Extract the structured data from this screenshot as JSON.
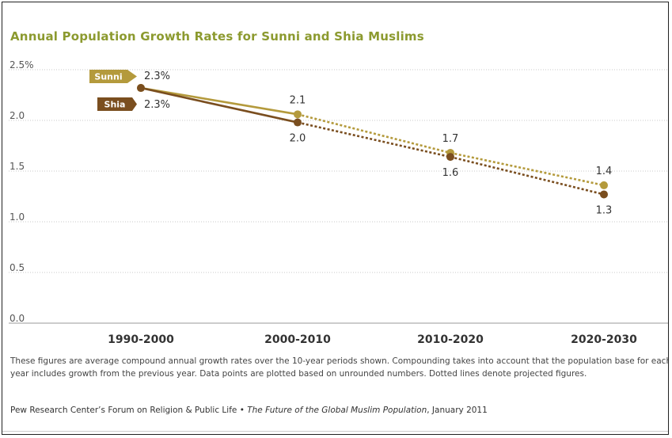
{
  "title": "Annual Population Growth Rates for Sunni and Shia Muslims",
  "chart_data": {
    "type": "line",
    "title": "Annual Population Growth Rates for Sunni and Shia Muslims",
    "categories": [
      "1990-2000",
      "2000-2010",
      "2010-2020",
      "2020-2030"
    ],
    "ylim": [
      0,
      2.5
    ],
    "yticks": [
      0,
      0.5,
      1.0,
      1.5,
      2.0,
      2.5
    ],
    "ytick_labels": [
      "0.0",
      "0.5",
      "1.0",
      "1.5",
      "2.0",
      "2.5%"
    ],
    "grid": true,
    "series": [
      {
        "name": "Sunni",
        "values": [
          2.32,
          2.06,
          1.68,
          1.36
        ],
        "labels": [
          "2.3%",
          "2.1",
          "1.7",
          "1.4"
        ],
        "color": "#b49a3c"
      },
      {
        "name": "Shia",
        "values": [
          2.32,
          1.98,
          1.64,
          1.27
        ],
        "labels": [
          "2.3%",
          "2.0",
          "1.6",
          "1.3"
        ],
        "color": "#7a4e1f"
      }
    ],
    "projected_from_index": 1
  },
  "notes": "These figures are average compound annual growth rates over the 10-year periods shown. Compounding takes into account that the population base for each year includes growth from the previous year. Data points are plotted based on unrounded numbers. Dotted lines denote projected figures.",
  "source": {
    "org": "Pew Research Center’s Forum on Religion & Public Life •",
    "publication": "The Future of the Global Muslim Population",
    "date": ", January 2011"
  }
}
